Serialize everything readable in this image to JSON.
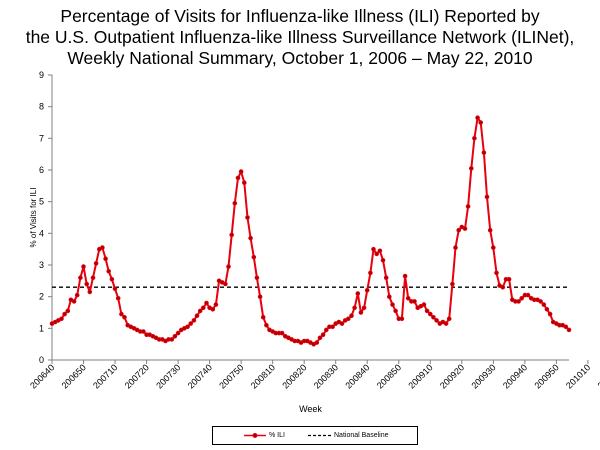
{
  "title_lines": [
    "Percentage of Visits for Influenza-like Illness (ILI) Reported by",
    "the U.S. Outpatient Influenza-like Illness Surveillance Network (ILINet),",
    "Weekly National Summary, October 1, 2006 – May 22, 2010"
  ],
  "colors": {
    "series": "#e8000e",
    "baseline": "#000000",
    "axis": "#808080"
  },
  "chart_data": {
    "type": "line",
    "title": "Percentage of Visits for Influenza-like Illness (ILI) Reported by the U.S. Outpatient Influenza-like Illness Surveillance Network (ILINet), Weekly National Summary, October 1, 2006 – May 22, 2010",
    "xlabel": "Week",
    "ylabel": "% of Visits for ILI",
    "ylim": [
      0,
      9
    ],
    "yticks": [
      0,
      1,
      2,
      3,
      4,
      5,
      6,
      7,
      8,
      9
    ],
    "x_tick_labels": [
      "200640",
      "200650",
      "200710",
      "200720",
      "200730",
      "200740",
      "200750",
      "200810",
      "200820",
      "200830",
      "200840",
      "200850",
      "200910",
      "200920",
      "200930",
      "200940",
      "200950",
      "201010",
      "201020"
    ],
    "legend_position": "bottom",
    "grid": false,
    "series": [
      {
        "name": "% ILI",
        "values": [
          1.15,
          1.2,
          1.25,
          1.3,
          1.45,
          1.55,
          1.9,
          1.85,
          2.05,
          2.6,
          2.95,
          2.4,
          2.15,
          2.6,
          3.05,
          3.5,
          3.55,
          3.2,
          2.8,
          2.55,
          2.25,
          1.95,
          1.45,
          1.35,
          1.1,
          1.05,
          1.0,
          0.95,
          0.9,
          0.9,
          0.8,
          0.8,
          0.75,
          0.7,
          0.65,
          0.65,
          0.6,
          0.65,
          0.65,
          0.75,
          0.85,
          0.95,
          1.0,
          1.05,
          1.15,
          1.25,
          1.4,
          1.55,
          1.65,
          1.8,
          1.65,
          1.6,
          1.75,
          2.5,
          2.45,
          2.4,
          2.95,
          3.95,
          4.95,
          5.75,
          5.95,
          5.6,
          4.5,
          3.85,
          3.25,
          2.6,
          2.0,
          1.35,
          1.1,
          0.95,
          0.9,
          0.85,
          0.85,
          0.85,
          0.75,
          0.7,
          0.65,
          0.6,
          0.6,
          0.55,
          0.6,
          0.6,
          0.55,
          0.5,
          0.55,
          0.7,
          0.8,
          0.95,
          1.05,
          1.05,
          1.15,
          1.2,
          1.15,
          1.25,
          1.3,
          1.4,
          1.65,
          2.1,
          1.5,
          1.65,
          2.2,
          2.75,
          3.5,
          3.35,
          3.45,
          3.15,
          2.6,
          2.0,
          1.75,
          1.55,
          1.3,
          1.3,
          2.65,
          1.95,
          1.85,
          1.85,
          1.65,
          1.7,
          1.75,
          1.55,
          1.45,
          1.35,
          1.25,
          1.15,
          1.2,
          1.15,
          1.3,
          2.4,
          3.55,
          4.1,
          4.2,
          4.15,
          4.85,
          6.05,
          7.0,
          7.65,
          7.5,
          6.55,
          5.15,
          4.1,
          3.55,
          2.75,
          2.35,
          2.3,
          2.55,
          2.55,
          1.9,
          1.85,
          1.85,
          1.95,
          2.05,
          2.05,
          1.95,
          1.9,
          1.9,
          1.85,
          1.75,
          1.6,
          1.45,
          1.2,
          1.15,
          1.1,
          1.1,
          1.05,
          0.95
        ]
      },
      {
        "name": "National Baseline",
        "values": [
          2.3
        ]
      }
    ]
  }
}
